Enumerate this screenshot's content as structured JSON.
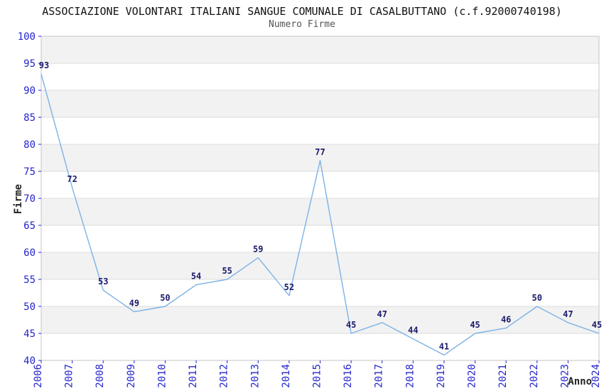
{
  "header": {
    "title": "ASSOCIAZIONE VOLONTARI ITALIANI SANGUE COMUNALE DI CASALBUTTANO (c.f.92000740198)",
    "subtitle": "Numero Firme"
  },
  "chart_data": {
    "type": "line",
    "title": "Numero Firme",
    "x": [
      "2006",
      "2007",
      "2008",
      "2009",
      "2010",
      "2011",
      "2012",
      "2013",
      "2014",
      "2015",
      "2016",
      "2017",
      "2018",
      "2019",
      "2020",
      "2021",
      "2022",
      "2023",
      "2024"
    ],
    "values": [
      93,
      72,
      53,
      49,
      50,
      54,
      55,
      59,
      52,
      77,
      45,
      47,
      44,
      41,
      45,
      46,
      50,
      47,
      45
    ],
    "xlabel": "Anno",
    "ylabel": "Firme",
    "ylim": [
      40,
      100
    ],
    "ytick_step": 5,
    "yticks": [
      40,
      45,
      50,
      55,
      60,
      65,
      70,
      75,
      80,
      85,
      90,
      95,
      100
    ],
    "grid": true,
    "banded_background": true,
    "legend": "none",
    "colors": {
      "line": "#7db2e6",
      "tick_label": "#2424cc",
      "value_label": "#1a1a6b",
      "band": "#f2f2f2",
      "gridline": "#dcdcdc",
      "border": "#c4c4c4",
      "axis_title": "#222222",
      "title": "#111111",
      "subtitle": "#555555",
      "background": "#ffffff"
    }
  }
}
